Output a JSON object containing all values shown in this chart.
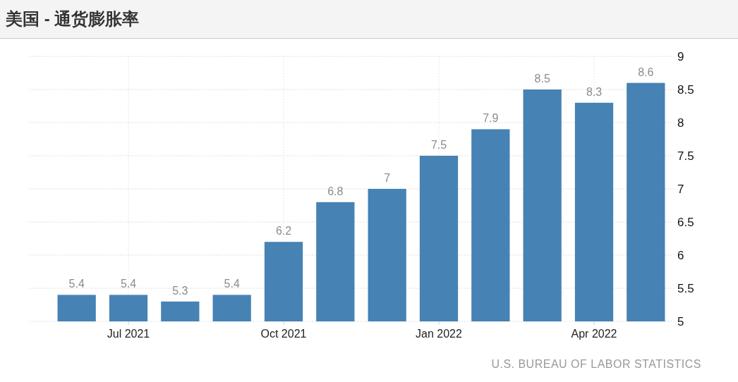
{
  "chart_data": {
    "type": "bar",
    "title": "美国 - 通货膨胀率",
    "categories": [
      null,
      "Jul 2021",
      null,
      null,
      "Oct 2021",
      null,
      null,
      "Jan 2022",
      null,
      null,
      "Apr 2022",
      null
    ],
    "values": [
      5.4,
      5.4,
      5.3,
      5.4,
      6.2,
      6.8,
      7,
      7.5,
      7.9,
      8.5,
      8.3,
      8.6
    ],
    "color": "#4682b4",
    "ylim": [
      5,
      9
    ],
    "yticks": [
      5,
      5.5,
      6,
      6.5,
      7,
      7.5,
      8,
      8.5,
      9
    ],
    "grid": true,
    "data_labels": true,
    "annotations": [
      "U.S. BUREAU OF LABOR STATISTICS"
    ]
  }
}
